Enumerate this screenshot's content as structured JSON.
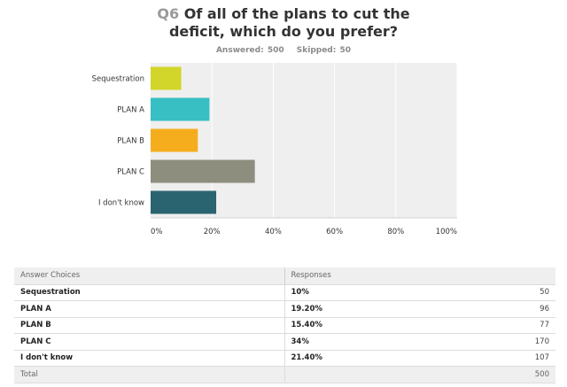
{
  "question": {
    "number": "Q6",
    "text": "Of all of the plans to cut the\ndeficit, which do you prefer?",
    "answered": "Answered: 500",
    "skipped": "Skipped: 50"
  },
  "chart_data": {
    "type": "bar",
    "orientation": "horizontal",
    "categories": [
      "Sequestration",
      "PLAN A",
      "PLAN B",
      "PLAN C",
      "I don't know"
    ],
    "values": [
      10,
      19.2,
      15.4,
      34,
      21.4
    ],
    "colors": [
      "#d2d52a",
      "#37bfc4",
      "#f5ad1d",
      "#8d8e7e",
      "#2a6470"
    ],
    "xlim": [
      0,
      100
    ],
    "ticks": [
      "0%",
      "20%",
      "40%",
      "60%",
      "80%",
      "100%"
    ],
    "tick_values": [
      0,
      20,
      40,
      60,
      80,
      100
    ],
    "grid": true,
    "background": "#efefef"
  },
  "table": {
    "headers": [
      "Answer Choices",
      "Responses",
      ""
    ],
    "rows": [
      {
        "choice": "Sequestration",
        "pct": "10%",
        "count": "50"
      },
      {
        "choice": "PLAN A",
        "pct": "19.20%",
        "count": "96"
      },
      {
        "choice": "PLAN B",
        "pct": "15.40%",
        "count": "77"
      },
      {
        "choice": "PLAN C",
        "pct": "34%",
        "count": "170"
      },
      {
        "choice": "I don't know",
        "pct": "21.40%",
        "count": "107"
      }
    ],
    "total_label": "Total",
    "total_count": "500"
  }
}
